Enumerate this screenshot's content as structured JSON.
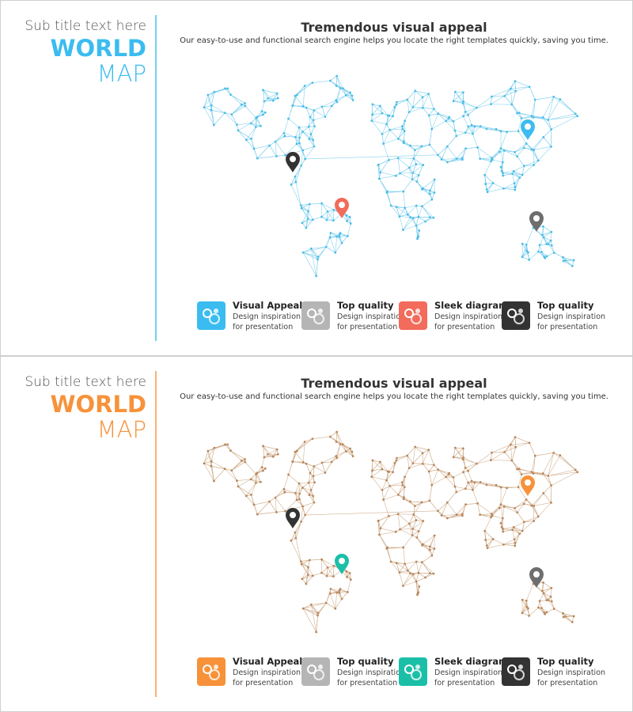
{
  "slides": [
    {
      "subtitle": "Sub title text here",
      "title_bold": "WORLD",
      "title_light": "MAP",
      "heading": "Tremendous visual appeal",
      "description": "Our easy-to-use and functional search engine helps you locate the right templates quickly, saving you time.",
      "accent": "#3bbcf0",
      "map_line": "#86d2ef",
      "map_dot": "#4bbde6",
      "pins": [
        {
          "color": "#333333"
        },
        {
          "color": "#3bbcf0"
        },
        {
          "color": "#f26b5b"
        },
        {
          "color": "#6e6e6e"
        }
      ],
      "features": [
        {
          "title": "Visual Appeal",
          "line1": "Design inspiration",
          "line2": "for presentation",
          "icon": "gears-icon",
          "color": "#3bbcf0"
        },
        {
          "title": "Top quality",
          "line1": "Design inspiration",
          "line2": "for presentation",
          "icon": "gear-icon",
          "color": "#b5b5b5"
        },
        {
          "title": "Sleek diagram",
          "line1": "Design inspiration",
          "line2": "for presentation",
          "icon": "laptop-chart-icon",
          "color": "#f26b5b"
        },
        {
          "title": "Top quality",
          "line1": "Design inspiration",
          "line2": "for presentation",
          "icon": "cube-network-icon",
          "color": "#333333"
        }
      ]
    },
    {
      "subtitle": "Sub title text here",
      "title_bold": "WORLD",
      "title_light": "MAP",
      "heading": "Tremendous visual appeal",
      "description": "Our easy-to-use and functional search engine helps you locate the right templates quickly, saving you time.",
      "accent": "#f7923a",
      "map_line": "#d2b293",
      "map_dot": "#b8875c",
      "pins": [
        {
          "color": "#333333"
        },
        {
          "color": "#f7923a"
        },
        {
          "color": "#1bbfa8"
        },
        {
          "color": "#6e6e6e"
        }
      ],
      "features": [
        {
          "title": "Visual Appeal",
          "line1": "Design inspiration",
          "line2": "for presentation",
          "icon": "gears-icon",
          "color": "#f7923a"
        },
        {
          "title": "Top quality",
          "line1": "Design inspiration",
          "line2": "for presentation",
          "icon": "gear-icon",
          "color": "#b5b5b5"
        },
        {
          "title": "Sleek diagram",
          "line1": "Design inspiration",
          "line2": "for presentation",
          "icon": "laptop-chart-icon",
          "color": "#1bbfa8"
        },
        {
          "title": "Top quality",
          "line1": "Design inspiration",
          "line2": "for presentation",
          "icon": "cube-network-icon",
          "color": "#333333"
        }
      ]
    }
  ]
}
